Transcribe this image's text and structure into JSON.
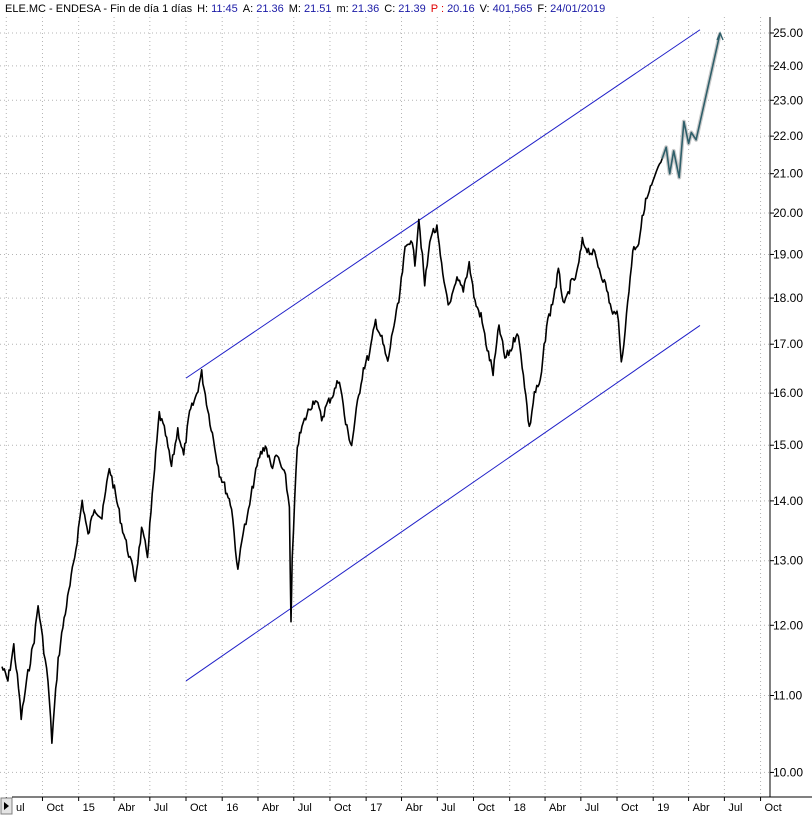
{
  "header": {
    "segments": [
      {
        "text": "ELE.MC - ENDESA - Fin de día 1 días",
        "color": "#000000"
      },
      {
        "text": "H:",
        "color": "#000000"
      },
      {
        "text": "11:45",
        "color": "#1a1aa6"
      },
      {
        "text": "A:",
        "color": "#000000"
      },
      {
        "text": "21.36",
        "color": "#1a1aa6"
      },
      {
        "text": "M:",
        "color": "#000000"
      },
      {
        "text": "21.51",
        "color": "#1a1aa6"
      },
      {
        "text": "m:",
        "color": "#000000"
      },
      {
        "text": "21.36",
        "color": "#1a1aa6"
      },
      {
        "text": "C:",
        "color": "#000000"
      },
      {
        "text": "21.39",
        "color": "#1a1aa6"
      },
      {
        "text": "P :",
        "color": "#e00000"
      },
      {
        "text": "20.16",
        "color": "#1a1aa6"
      },
      {
        "text": "V:",
        "color": "#000000"
      },
      {
        "text": "401,565",
        "color": "#1a1aa6"
      },
      {
        "text": "F:",
        "color": "#000000"
      },
      {
        "text": "24/01/2019",
        "color": "#1a1aa6"
      }
    ]
  },
  "scroll_arrow_icon": "triangle-right",
  "colors": {
    "price": "#000000",
    "channel": "#1f1fc8",
    "projection": "#2f5f6a",
    "grid": "#b4b4b4",
    "background": "#ffffff"
  },
  "chart_data": {
    "type": "line",
    "title": "",
    "xlabel": "",
    "ylabel": "",
    "y_scale": "log",
    "ylim": [
      9.7,
      25.5
    ],
    "y_ticks": [
      10,
      11,
      12,
      13,
      14,
      15,
      16,
      17,
      18,
      19,
      20,
      21,
      22,
      23,
      24,
      25
    ],
    "y_tick_labels": [
      "10.00",
      "11.00",
      "12.00",
      "13.00",
      "14.00",
      "15.00",
      "16.00",
      "17.00",
      "18.00",
      "19.00",
      "20.00",
      "21.00",
      "22.00",
      "23.00",
      "24.00",
      "25.00"
    ],
    "xlim": [
      "2014-06-15",
      "2019-10-25"
    ],
    "x_ticks": [
      {
        "date": "2014-07-01",
        "label": "ul"
      },
      {
        "date": "2014-10-01",
        "label": "Oct"
      },
      {
        "date": "2015-01-01",
        "label": "15"
      },
      {
        "date": "2015-04-01",
        "label": "Abr"
      },
      {
        "date": "2015-07-01",
        "label": "Jul"
      },
      {
        "date": "2015-10-01",
        "label": "Oct"
      },
      {
        "date": "2016-01-01",
        "label": "16"
      },
      {
        "date": "2016-04-01",
        "label": "Abr"
      },
      {
        "date": "2016-07-01",
        "label": "Jul"
      },
      {
        "date": "2016-10-01",
        "label": "Oct"
      },
      {
        "date": "2017-01-01",
        "label": "17"
      },
      {
        "date": "2017-04-01",
        "label": "Abr"
      },
      {
        "date": "2017-07-01",
        "label": "Jul"
      },
      {
        "date": "2017-10-01",
        "label": "Oct"
      },
      {
        "date": "2018-01-01",
        "label": "18"
      },
      {
        "date": "2018-04-01",
        "label": "Abr"
      },
      {
        "date": "2018-07-01",
        "label": "Jul"
      },
      {
        "date": "2018-10-01",
        "label": "Oct"
      },
      {
        "date": "2019-01-01",
        "label": "19"
      },
      {
        "date": "2019-04-01",
        "label": "Abr"
      },
      {
        "date": "2019-07-01",
        "label": "Jul"
      },
      {
        "date": "2019-10-01",
        "label": "Oct"
      }
    ],
    "grid": true,
    "series": [
      {
        "name": "",
        "kind": "price",
        "points": [
          [
            "2014-06-20",
            11.4
          ],
          [
            "2014-07-05",
            11.2
          ],
          [
            "2014-07-20",
            11.7
          ],
          [
            "2014-08-01",
            11.1
          ],
          [
            "2014-08-08",
            10.7
          ],
          [
            "2014-08-25",
            11.3
          ],
          [
            "2014-09-10",
            11.8
          ],
          [
            "2014-09-20",
            12.3
          ],
          [
            "2014-10-01",
            11.8
          ],
          [
            "2014-10-15",
            11.2
          ],
          [
            "2014-10-25",
            10.4
          ],
          [
            "2014-11-10",
            11.5
          ],
          [
            "2014-11-25",
            12.1
          ],
          [
            "2014-12-10",
            12.6
          ],
          [
            "2014-12-25",
            13.2
          ],
          [
            "2015-01-10",
            14.0
          ],
          [
            "2015-01-25",
            13.4
          ],
          [
            "2015-02-10",
            13.9
          ],
          [
            "2015-03-01",
            13.7
          ],
          [
            "2015-03-20",
            14.6
          ],
          [
            "2015-04-05",
            14.1
          ],
          [
            "2015-04-20",
            13.6
          ],
          [
            "2015-05-05",
            13.2
          ],
          [
            "2015-05-25",
            12.7
          ],
          [
            "2015-06-10",
            13.5
          ],
          [
            "2015-06-25",
            13.1
          ],
          [
            "2015-07-10",
            14.3
          ],
          [
            "2015-07-25",
            15.6
          ],
          [
            "2015-08-10",
            15.2
          ],
          [
            "2015-08-25",
            14.6
          ],
          [
            "2015-09-10",
            15.3
          ],
          [
            "2015-09-25",
            14.8
          ],
          [
            "2015-10-10",
            15.6
          ],
          [
            "2015-10-25",
            15.9
          ],
          [
            "2015-11-10",
            16.4
          ],
          [
            "2015-11-25",
            15.7
          ],
          [
            "2015-12-10",
            15.1
          ],
          [
            "2015-12-25",
            14.5
          ],
          [
            "2016-01-10",
            14.2
          ],
          [
            "2016-01-25",
            13.9
          ],
          [
            "2016-02-10",
            12.8
          ],
          [
            "2016-02-20",
            13.4
          ],
          [
            "2016-03-05",
            13.7
          ],
          [
            "2016-03-20",
            14.3
          ],
          [
            "2016-04-05",
            14.8
          ],
          [
            "2016-04-20",
            15.0
          ],
          [
            "2016-05-05",
            14.6
          ],
          [
            "2016-05-20",
            14.8
          ],
          [
            "2016-06-10",
            14.4
          ],
          [
            "2016-06-20",
            13.9
          ],
          [
            "2016-06-24",
            12.0
          ],
          [
            "2016-06-27",
            13.0
          ],
          [
            "2016-07-10",
            15.0
          ],
          [
            "2016-07-25",
            15.4
          ],
          [
            "2016-08-10",
            15.7
          ],
          [
            "2016-08-25",
            15.9
          ],
          [
            "2016-09-10",
            15.5
          ],
          [
            "2016-09-25",
            15.8
          ],
          [
            "2016-10-10",
            16.0
          ],
          [
            "2016-10-25",
            16.3
          ],
          [
            "2016-11-10",
            15.4
          ],
          [
            "2016-11-25",
            15.0
          ],
          [
            "2016-12-10",
            15.8
          ],
          [
            "2016-12-25",
            16.5
          ],
          [
            "2017-01-10",
            16.8
          ],
          [
            "2017-01-25",
            17.5
          ],
          [
            "2017-02-10",
            17.1
          ],
          [
            "2017-02-25",
            16.6
          ],
          [
            "2017-03-10",
            17.3
          ],
          [
            "2017-03-25",
            17.9
          ],
          [
            "2017-04-10",
            19.1
          ],
          [
            "2017-04-25",
            19.4
          ],
          [
            "2017-05-05",
            18.8
          ],
          [
            "2017-05-15",
            19.9
          ],
          [
            "2017-05-30",
            18.3
          ],
          [
            "2017-06-15",
            19.5
          ],
          [
            "2017-06-30",
            19.6
          ],
          [
            "2017-07-15",
            18.5
          ],
          [
            "2017-08-01",
            17.8
          ],
          [
            "2017-08-20",
            18.4
          ],
          [
            "2017-09-05",
            18.2
          ],
          [
            "2017-09-20",
            18.8
          ],
          [
            "2017-10-05",
            17.9
          ],
          [
            "2017-10-20",
            17.6
          ],
          [
            "2017-11-05",
            16.9
          ],
          [
            "2017-11-20",
            16.4
          ],
          [
            "2017-12-05",
            17.4
          ],
          [
            "2017-12-20",
            16.7
          ],
          [
            "2018-01-05",
            16.9
          ],
          [
            "2018-01-20",
            17.3
          ],
          [
            "2018-02-05",
            16.4
          ],
          [
            "2018-02-20",
            15.3
          ],
          [
            "2018-03-05",
            16.0
          ],
          [
            "2018-03-20",
            16.2
          ],
          [
            "2018-04-05",
            17.4
          ],
          [
            "2018-04-20",
            17.9
          ],
          [
            "2018-05-05",
            18.6
          ],
          [
            "2018-05-20",
            17.8
          ],
          [
            "2018-06-05",
            18.3
          ],
          [
            "2018-06-20",
            18.5
          ],
          [
            "2018-07-05",
            19.3
          ],
          [
            "2018-07-20",
            19.1
          ],
          [
            "2018-08-05",
            19.0
          ],
          [
            "2018-08-20",
            18.6
          ],
          [
            "2018-09-05",
            18.2
          ],
          [
            "2018-09-20",
            17.6
          ],
          [
            "2018-10-01",
            17.8
          ],
          [
            "2018-10-12",
            16.6
          ],
          [
            "2018-10-25",
            17.6
          ],
          [
            "2018-11-10",
            19.1
          ],
          [
            "2018-11-25",
            19.3
          ],
          [
            "2018-12-10",
            20.2
          ],
          [
            "2018-12-25",
            20.6
          ],
          [
            "2019-01-10",
            21.0
          ],
          [
            "2019-01-24",
            21.4
          ]
        ]
      },
      {
        "name": "",
        "kind": "projection",
        "points": [
          [
            "2019-01-24",
            21.4
          ],
          [
            "2019-02-03",
            21.7
          ],
          [
            "2019-02-12",
            21.0
          ],
          [
            "2019-02-22",
            21.6
          ],
          [
            "2019-03-08",
            20.9
          ],
          [
            "2019-03-20",
            22.4
          ],
          [
            "2019-04-01",
            21.8
          ],
          [
            "2019-04-08",
            22.1
          ],
          [
            "2019-04-20",
            21.9
          ],
          [
            "2019-06-20",
            25.0
          ]
        ]
      }
    ],
    "channel_lines": [
      {
        "name": "",
        "from": [
          "2015-10-01",
          16.3
        ],
        "to": [
          "2019-04-30",
          25.1
        ]
      },
      {
        "name": "",
        "from": [
          "2015-10-01",
          11.2
        ],
        "to": [
          "2019-04-30",
          17.4
        ]
      }
    ]
  }
}
